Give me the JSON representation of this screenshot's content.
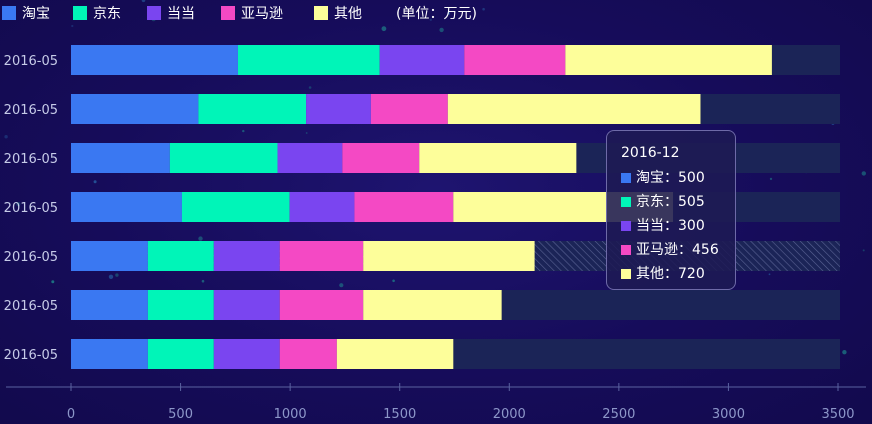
{
  "chart_data": {
    "type": "bar",
    "orientation": "horizontal",
    "stacked": true,
    "unit_label": "(单位：万元)",
    "categories": [
      "2016-05",
      "2016-05",
      "2016-05",
      "2016-05",
      "2016-05",
      "2016-05",
      "2016-05"
    ],
    "series": [
      {
        "name": "淘宝",
        "color": "#3a78f2",
        "values": [
          350,
          350,
          350,
          505,
          450,
          580,
          760
        ]
      },
      {
        "name": "京东",
        "color": "#00f5b8",
        "values": [
          300,
          300,
          300,
          490,
          490,
          490,
          645
        ]
      },
      {
        "name": "当当",
        "color": "#7a45f0",
        "values": [
          300,
          300,
          300,
          295,
          295,
          295,
          385
        ]
      },
      {
        "name": "亚马逊",
        "color": "#f449c4",
        "values": [
          260,
          380,
          380,
          450,
          350,
          350,
          460
        ]
      },
      {
        "name": "其他",
        "color": "#fdfe9a",
        "values": [
          530,
          630,
          780,
          1000,
          715,
          1150,
          940
        ]
      }
    ],
    "max_value": 3500,
    "xlim": [
      0,
      3500
    ],
    "x_ticks": [
      0,
      500,
      1000,
      1500,
      2000,
      2500,
      3000,
      3500
    ],
    "background_bar_color": "#1b2457",
    "highlighted_category_index": 2,
    "legend_position": "top-left",
    "grid": false
  },
  "tooltip": {
    "title": "2016-12",
    "rows": [
      {
        "label": "淘宝：500",
        "color": "#3a78f2"
      },
      {
        "label": "京东：505",
        "color": "#00f5b8"
      },
      {
        "label": "当当：300",
        "color": "#7a45f0"
      },
      {
        "label": "亚马逊：456",
        "color": "#f449c4"
      },
      {
        "label": "其他：720",
        "color": "#fdfe9a"
      }
    ]
  }
}
